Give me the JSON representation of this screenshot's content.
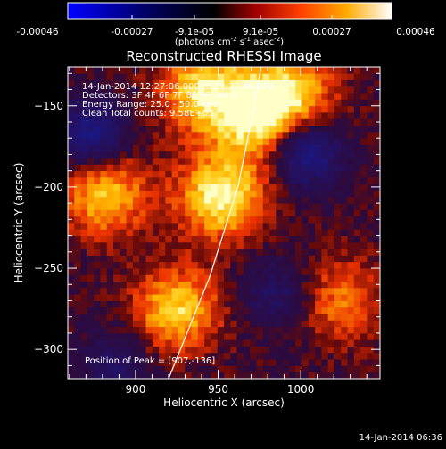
{
  "colorbar": {
    "ticks": [
      "-0.00046",
      "-0.00027",
      "-9.1e-05",
      "9.1e-05",
      "0.00027",
      "0.00046"
    ],
    "units_prefix": "(photons cm",
    "units_exp1": "-2",
    "units_mid": " s",
    "units_exp2": "-1",
    "units_mid2": " asec",
    "units_exp3": "-2",
    "units_suffix": ")"
  },
  "chart_data": {
    "type": "heatmap",
    "title": "Reconstructed RHESSI Image",
    "xlabel": "Heliocentric X (arcsec)",
    "ylabel": "Heliocentric Y (arcsec)",
    "xlim": [
      859,
      1048
    ],
    "ylim": [
      -318,
      -126
    ],
    "xticks": [
      900,
      950,
      1000
    ],
    "yticks": [
      -150,
      -200,
      -250,
      -300
    ],
    "colorbar_range": [
      -0.00046,
      0.00046
    ],
    "colormap": "heat (blue-black-red-orange-yellow-white)",
    "grid": false,
    "peak": [
      907,
      -136
    ],
    "hot_regions": [
      {
        "x": 952,
        "y": -205,
        "level": 1.0
      },
      {
        "x": 972,
        "y": -155,
        "level": 0.9
      },
      {
        "x": 940,
        "y": -140,
        "level": 0.8
      },
      {
        "x": 882,
        "y": -205,
        "level": 0.75
      },
      {
        "x": 925,
        "y": -275,
        "level": 0.8
      },
      {
        "x": 995,
        "y": -140,
        "level": 0.7
      },
      {
        "x": 1025,
        "y": -270,
        "level": 0.5
      }
    ],
    "cold_regions": [
      {
        "x": 873,
        "y": -167,
        "level": -0.9
      },
      {
        "x": 1005,
        "y": -180,
        "level": -0.9
      },
      {
        "x": 985,
        "y": -265,
        "level": -0.5
      },
      {
        "x": 888,
        "y": -310,
        "level": -0.5
      }
    ],
    "limb_curve": [
      {
        "x": 920,
        "y": -318
      },
      {
        "x": 945,
        "y": -255
      },
      {
        "x": 962,
        "y": -200
      },
      {
        "x": 970,
        "y": -160
      },
      {
        "x": 976,
        "y": -126
      }
    ]
  },
  "annotations": {
    "time_range": "14-Jan-2014 12:27:06.000 to 12:31:06.000",
    "detectors": "Detectors: 3F 4F 6F 7F 8F 9F, Att 0",
    "energy": "Energy Range: 25.0 - 50.0 keV",
    "clean": "Clean    Total counts: 9.58E+03",
    "peak": "Position of Peak = [907,-136]"
  },
  "footer": {
    "timestamp": "14-Jan-2014 06:36"
  }
}
